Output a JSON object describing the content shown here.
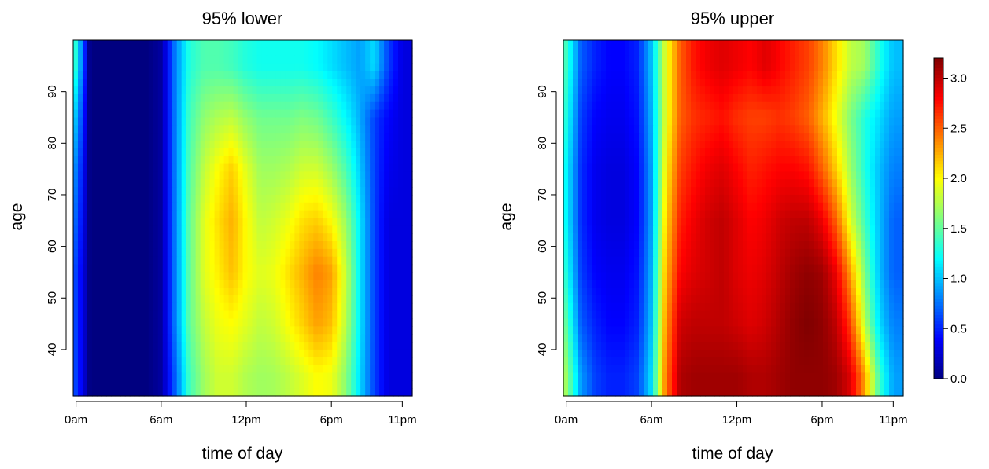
{
  "chart_data": [
    {
      "type": "heatmap",
      "title": "95% lower",
      "xlabel": "time of day",
      "ylabel": "age",
      "x_ticks": [
        {
          "value": 0,
          "label": "0am"
        },
        {
          "value": 6,
          "label": "6am"
        },
        {
          "value": 12,
          "label": "12pm"
        },
        {
          "value": 18,
          "label": "6pm"
        },
        {
          "value": 23,
          "label": "11pm"
        }
      ],
      "y_ticks": [
        {
          "value": 40,
          "label": "40"
        },
        {
          "value": 50,
          "label": "50"
        },
        {
          "value": 60,
          "label": "60"
        },
        {
          "value": 70,
          "label": "70"
        },
        {
          "value": 80,
          "label": "80"
        },
        {
          "value": 90,
          "label": "90"
        }
      ],
      "xlim": [
        -0.2,
        23.7
      ],
      "ylim": [
        31,
        100
      ],
      "value_range": [
        0,
        3.2
      ],
      "x": [
        0,
        1,
        2,
        3,
        4,
        5,
        6,
        7,
        8,
        9,
        10,
        11,
        12,
        13,
        14,
        15,
        16,
        17,
        18,
        19,
        20,
        21,
        22,
        23
      ],
      "y": [
        35,
        45,
        55,
        65,
        75,
        85,
        95
      ],
      "z": [
        [
          0.6,
          0.0,
          0.0,
          0.0,
          0.0,
          0.0,
          0.1,
          0.7,
          1.4,
          1.7,
          1.85,
          1.85,
          1.75,
          1.7,
          1.72,
          1.8,
          1.9,
          2.0,
          1.95,
          1.65,
          1.1,
          0.6,
          0.3,
          0.3
        ],
        [
          0.6,
          0.0,
          0.0,
          0.0,
          0.0,
          0.0,
          0.1,
          0.8,
          1.5,
          1.8,
          1.95,
          2.0,
          1.9,
          1.8,
          1.85,
          2.0,
          2.15,
          2.3,
          2.2,
          1.8,
          1.15,
          0.6,
          0.3,
          0.3
        ],
        [
          0.6,
          0.0,
          0.0,
          0.0,
          0.0,
          0.0,
          0.1,
          0.8,
          1.5,
          1.9,
          2.05,
          2.2,
          2.0,
          1.9,
          1.95,
          2.1,
          2.25,
          2.4,
          2.3,
          1.85,
          1.15,
          0.6,
          0.3,
          0.3
        ],
        [
          0.7,
          0.0,
          0.0,
          0.0,
          0.0,
          0.0,
          0.1,
          0.8,
          1.5,
          1.9,
          2.1,
          2.25,
          2.0,
          1.8,
          1.85,
          1.95,
          2.1,
          2.15,
          2.0,
          1.7,
          1.15,
          0.6,
          0.3,
          0.3
        ],
        [
          0.8,
          0.0,
          0.0,
          0.0,
          0.0,
          0.0,
          0.1,
          0.8,
          1.45,
          1.8,
          2.0,
          2.15,
          1.9,
          1.7,
          1.7,
          1.75,
          1.85,
          1.85,
          1.7,
          1.45,
          1.05,
          0.6,
          0.35,
          0.3
        ],
        [
          1.0,
          0.0,
          0.0,
          0.0,
          0.0,
          0.0,
          0.1,
          0.8,
          1.4,
          1.65,
          1.75,
          1.8,
          1.65,
          1.55,
          1.55,
          1.55,
          1.6,
          1.55,
          1.4,
          1.2,
          0.95,
          0.6,
          0.4,
          0.3
        ],
        [
          1.3,
          0.0,
          0.0,
          0.0,
          0.0,
          0.0,
          0.1,
          0.8,
          1.3,
          1.45,
          1.45,
          1.4,
          1.3,
          1.25,
          1.25,
          1.25,
          1.25,
          1.2,
          1.1,
          1.0,
          0.9,
          1.1,
          0.6,
          0.3
        ]
      ]
    },
    {
      "type": "heatmap",
      "title": "95% upper",
      "xlabel": "time of day",
      "ylabel": "age",
      "x_ticks": [
        {
          "value": 0,
          "label": "0am"
        },
        {
          "value": 6,
          "label": "6am"
        },
        {
          "value": 12,
          "label": "12pm"
        },
        {
          "value": 18,
          "label": "6pm"
        },
        {
          "value": 23,
          "label": "11pm"
        }
      ],
      "y_ticks": [
        {
          "value": 40,
          "label": "40"
        },
        {
          "value": 50,
          "label": "50"
        },
        {
          "value": 60,
          "label": "60"
        },
        {
          "value": 70,
          "label": "70"
        },
        {
          "value": 80,
          "label": "80"
        },
        {
          "value": 90,
          "label": "90"
        }
      ],
      "xlim": [
        -0.2,
        23.7
      ],
      "ylim": [
        31,
        100
      ],
      "value_range": [
        0,
        3.2
      ],
      "x": [
        0,
        1,
        2,
        3,
        4,
        5,
        6,
        7,
        8,
        9,
        10,
        11,
        12,
        13,
        14,
        15,
        16,
        17,
        18,
        19,
        20,
        21,
        22,
        23
      ],
      "y": [
        35,
        45,
        55,
        65,
        75,
        85,
        95
      ],
      "z": [
        [
          1.7,
          0.9,
          0.6,
          0.5,
          0.5,
          0.6,
          1.1,
          2.4,
          3.05,
          3.1,
          3.1,
          3.1,
          3.1,
          3.05,
          3.05,
          3.1,
          3.15,
          3.15,
          3.15,
          3.1,
          2.9,
          2.3,
          1.4,
          0.9
        ],
        [
          1.5,
          0.7,
          0.5,
          0.4,
          0.4,
          0.5,
          1.0,
          2.3,
          2.95,
          3.0,
          3.0,
          3.0,
          2.95,
          2.9,
          2.95,
          3.05,
          3.15,
          3.2,
          3.15,
          3.0,
          2.6,
          1.8,
          1.1,
          0.8
        ],
        [
          1.3,
          0.6,
          0.4,
          0.35,
          0.35,
          0.45,
          0.95,
          2.2,
          2.8,
          2.9,
          2.95,
          3.0,
          2.9,
          2.85,
          2.9,
          3.0,
          3.1,
          3.15,
          3.1,
          2.85,
          2.3,
          1.6,
          1.0,
          0.7
        ],
        [
          1.2,
          0.55,
          0.35,
          0.3,
          0.3,
          0.4,
          0.9,
          2.1,
          2.7,
          2.85,
          2.95,
          3.0,
          2.9,
          2.8,
          2.85,
          2.95,
          3.0,
          3.0,
          2.85,
          2.5,
          1.9,
          1.4,
          1.0,
          0.7
        ],
        [
          1.2,
          0.55,
          0.35,
          0.3,
          0.3,
          0.4,
          0.9,
          2.0,
          2.6,
          2.75,
          2.85,
          2.9,
          2.8,
          2.7,
          2.75,
          2.8,
          2.8,
          2.75,
          2.5,
          2.15,
          1.7,
          1.3,
          1.0,
          0.8
        ],
        [
          1.3,
          0.6,
          0.4,
          0.35,
          0.35,
          0.45,
          0.95,
          1.9,
          2.5,
          2.65,
          2.7,
          2.75,
          2.65,
          2.6,
          2.6,
          2.65,
          2.6,
          2.5,
          2.25,
          1.95,
          1.6,
          1.3,
          1.1,
          0.9
        ],
        [
          1.4,
          0.7,
          0.5,
          0.4,
          0.4,
          0.5,
          1.0,
          1.9,
          2.5,
          2.75,
          2.85,
          2.9,
          2.85,
          2.8,
          2.9,
          2.8,
          2.7,
          2.6,
          2.4,
          2.1,
          1.8,
          1.7,
          1.3,
          1.0
        ]
      ]
    }
  ],
  "colorbar": {
    "ticks": [
      {
        "value": 0.0,
        "label": "0.0"
      },
      {
        "value": 0.5,
        "label": "0.5"
      },
      {
        "value": 1.0,
        "label": "1.0"
      },
      {
        "value": 1.5,
        "label": "1.5"
      },
      {
        "value": 2.0,
        "label": "2.0"
      },
      {
        "value": 2.5,
        "label": "2.5"
      },
      {
        "value": 3.0,
        "label": "3.0"
      }
    ],
    "range": [
      0,
      3.2
    ]
  }
}
